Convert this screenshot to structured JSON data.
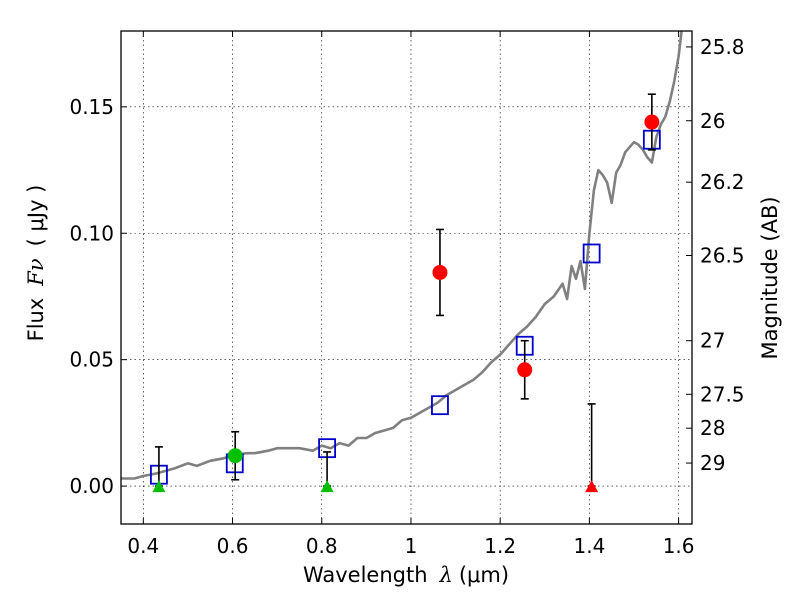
{
  "chart_data": {
    "type": "scatter",
    "title": "",
    "xlabel": {
      "prefix": "Wavelength",
      "symbol": "λ",
      "unit": "(μm)"
    },
    "ylabel": {
      "prefix": "Flux",
      "symbol": "Fν",
      "unit": "( μJy )"
    },
    "y2label": "Magnitude (AB)",
    "xlim": [
      0.35,
      1.63
    ],
    "ylim": [
      -0.015,
      0.18
    ],
    "grid": true,
    "x_ticks": [
      {
        "value": 0.4,
        "label": "0.4"
      },
      {
        "value": 0.6,
        "label": "0.6"
      },
      {
        "value": 0.8,
        "label": "0.8"
      },
      {
        "value": 1.0,
        "label": "1"
      },
      {
        "value": 1.2,
        "label": "1.2"
      },
      {
        "value": 1.4,
        "label": "1.4"
      },
      {
        "value": 1.6,
        "label": "1.6"
      }
    ],
    "y_ticks": [
      {
        "value": 0.0,
        "label": "0.00"
      },
      {
        "value": 0.05,
        "label": "0.05"
      },
      {
        "value": 0.1,
        "label": "0.10"
      },
      {
        "value": 0.15,
        "label": "0.15"
      }
    ],
    "y2_ticks": [
      {
        "label": "25.8",
        "flux": 0.1737
      },
      {
        "label": "26",
        "flux": 0.1445
      },
      {
        "label": "26.2",
        "flux": 0.1202
      },
      {
        "label": "26.5",
        "flux": 0.0912
      },
      {
        "label": "27",
        "flux": 0.0575
      },
      {
        "label": "27.5",
        "flux": 0.0363
      },
      {
        "label": "28",
        "flux": 0.0229
      },
      {
        "label": "29",
        "flux": 0.0091
      }
    ],
    "model_spectrum": {
      "color": "#808080",
      "x": [
        0.35,
        0.38,
        0.4,
        0.43,
        0.45,
        0.47,
        0.5,
        0.52,
        0.55,
        0.58,
        0.6,
        0.63,
        0.65,
        0.68,
        0.7,
        0.72,
        0.75,
        0.78,
        0.8,
        0.82,
        0.84,
        0.86,
        0.88,
        0.9,
        0.92,
        0.94,
        0.96,
        0.98,
        1.0,
        1.02,
        1.04,
        1.06,
        1.08,
        1.1,
        1.12,
        1.14,
        1.16,
        1.18,
        1.2,
        1.22,
        1.24,
        1.26,
        1.28,
        1.3,
        1.32,
        1.34,
        1.35,
        1.36,
        1.37,
        1.38,
        1.39,
        1.4,
        1.41,
        1.42,
        1.43,
        1.44,
        1.45,
        1.46,
        1.47,
        1.48,
        1.49,
        1.5,
        1.51,
        1.52,
        1.53,
        1.54,
        1.55,
        1.56,
        1.57,
        1.58,
        1.59,
        1.6,
        1.61
      ],
      "y": [
        0.003,
        0.003,
        0.004,
        0.005,
        0.006,
        0.007,
        0.009,
        0.008,
        0.01,
        0.011,
        0.012,
        0.013,
        0.013,
        0.014,
        0.015,
        0.015,
        0.015,
        0.014,
        0.016,
        0.015,
        0.017,
        0.016,
        0.019,
        0.019,
        0.021,
        0.022,
        0.023,
        0.026,
        0.027,
        0.029,
        0.031,
        0.033,
        0.036,
        0.038,
        0.04,
        0.042,
        0.045,
        0.049,
        0.052,
        0.056,
        0.06,
        0.063,
        0.067,
        0.072,
        0.075,
        0.08,
        0.074,
        0.087,
        0.082,
        0.089,
        0.078,
        0.1,
        0.117,
        0.125,
        0.123,
        0.12,
        0.112,
        0.124,
        0.127,
        0.132,
        0.134,
        0.136,
        0.135,
        0.133,
        0.13,
        0.128,
        0.138,
        0.143,
        0.146,
        0.152,
        0.16,
        0.17,
        0.185
      ]
    },
    "series": [
      {
        "name": "",
        "marker": "square",
        "color": "#0000cc",
        "points": [
          {
            "x": 0.435,
            "y": 0.0045
          },
          {
            "x": 0.605,
            "y": 0.009
          },
          {
            "x": 0.812,
            "y": 0.015
          },
          {
            "x": 1.065,
            "y": 0.032
          },
          {
            "x": 1.255,
            "y": 0.0555
          },
          {
            "x": 1.405,
            "y": 0.092
          },
          {
            "x": 1.54,
            "y": 0.137
          }
        ]
      },
      {
        "name": "",
        "marker": "circle",
        "color": "#00c000",
        "points": [
          {
            "x": 0.606,
            "y": 0.012,
            "yerr": 0.0095
          }
        ]
      },
      {
        "name": "",
        "marker": "triangle",
        "color": "#00c000",
        "points": [
          {
            "x": 0.435,
            "y": 0.0,
            "yerr_low": 0.0,
            "yerr_high": 0.0155
          },
          {
            "x": 0.812,
            "y": 0.0,
            "yerr_low": 0.0,
            "yerr_high": 0.0135
          }
        ]
      },
      {
        "name": "",
        "marker": "circle",
        "color": "#ff0000",
        "points": [
          {
            "x": 1.065,
            "y": 0.0845,
            "yerr": 0.017
          },
          {
            "x": 1.255,
            "y": 0.046,
            "yerr": 0.0115
          },
          {
            "x": 1.54,
            "y": 0.144,
            "yerr": 0.011
          }
        ]
      },
      {
        "name": "",
        "marker": "triangle",
        "color": "#ff0000",
        "points": [
          {
            "x": 1.405,
            "y": 0.0,
            "yerr_low": 0.0,
            "yerr_high": 0.0325
          }
        ]
      }
    ]
  }
}
